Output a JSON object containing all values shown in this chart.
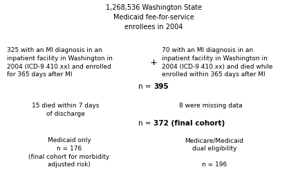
{
  "bg_color": "#ffffff",
  "top_text": "1,268,536 Washington State\nMedicaid fee-for-service\nenrollees in 2004",
  "left_box_text": "325 with an MI diagnosis in an\ninpatient facility in Washington in\n2004 (ICD-9 410.xx) and enrolled\nfor 365 days after MI",
  "plus_text": "+",
  "right_box_text": "70 with an MI diagnosis in an\ninpatient facility in Washington in\n2004 (ICD-9 410.xx) and died while\nenrolled within 365 days after MI",
  "left_exclude_text": "15 died within 7 days\nof discharge",
  "right_exclude_text": "8 were missing data",
  "bottom_left_text": "Medicaid only\nn = 176\n(final cohort for morbidity\nadjusted risk)",
  "bottom_right_text": "Medicare/Medicaid\ndual eligibility\n\nn = 196",
  "font_size": 6.5,
  "title_font_size": 7.0,
  "bold_font_size": 7.5
}
